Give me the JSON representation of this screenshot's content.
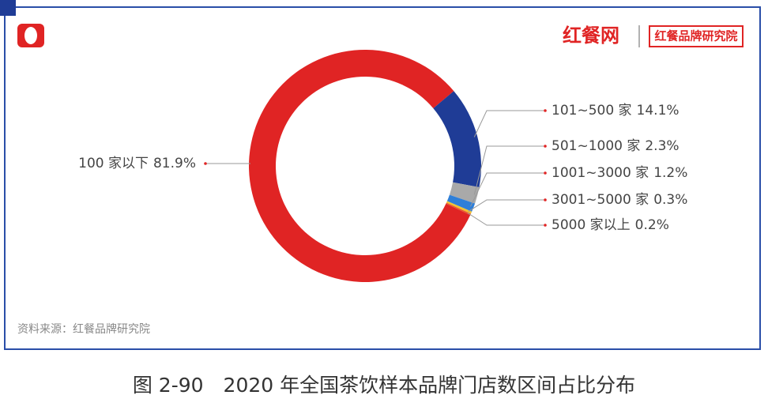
{
  "chart_data": {
    "type": "pie",
    "title": "图 2-90　2020 年全国茶饮样本品牌门店数区间占比分布",
    "logo": "红餐网",
    "logo_badge": "红餐品牌研究院",
    "source": "资料来源：红餐品牌研究院",
    "categories": [
      "100 家以下",
      "101~500 家",
      "501~1000 家",
      "1001~3000 家",
      "3001~5000 家",
      "5000 家以上"
    ],
    "values": [
      81.9,
      14.1,
      2.3,
      1.2,
      0.3,
      0.2
    ],
    "value_labels": [
      "81.9%",
      "14.1%",
      "2.3%",
      "1.2%",
      "0.3%",
      "0.2%"
    ],
    "colors": [
      "#e02424",
      "#1f3c96",
      "#a9a9a9",
      "#2f7fd8",
      "#f2c230",
      "#e8582c"
    ]
  }
}
